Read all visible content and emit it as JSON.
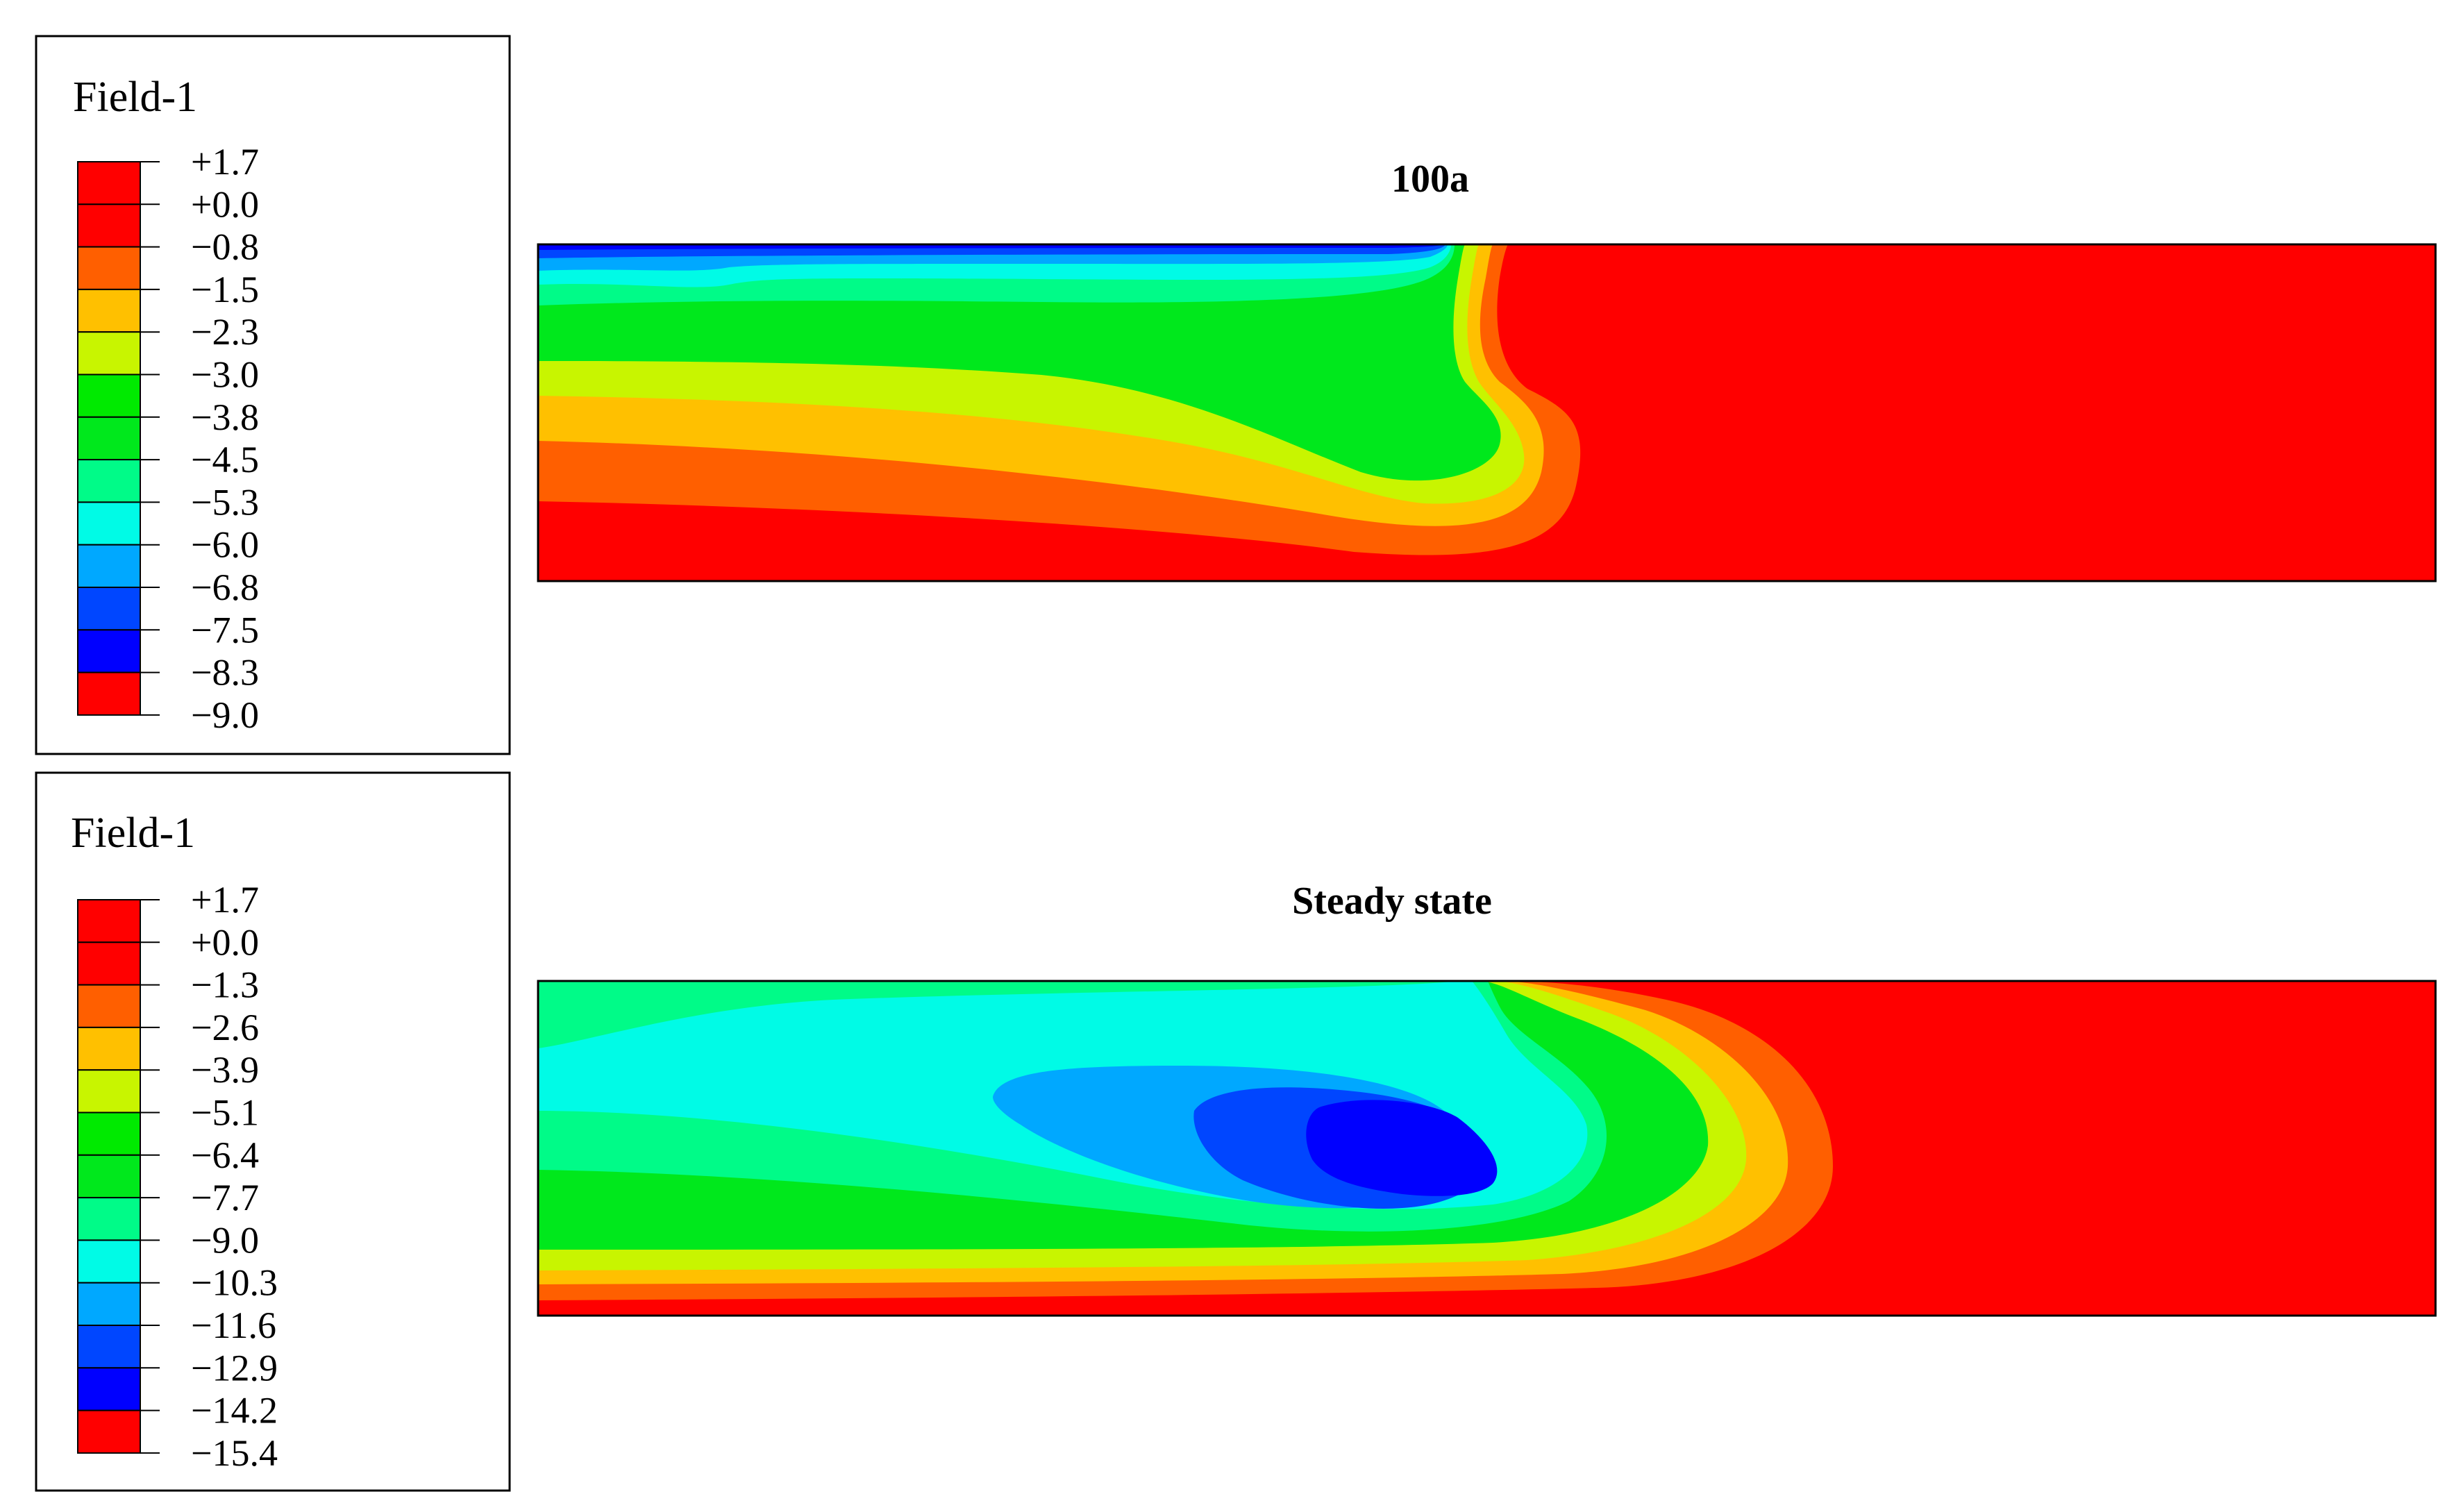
{
  "palette": [
    "#0000ff",
    "#0046ff",
    "#00a8ff",
    "#00fbe6",
    "#00fb88",
    "#00e81c",
    "#00ea00",
    "#c8f500",
    "#ffc000",
    "#ff5f00",
    "#ff0000",
    "#ff0000"
  ],
  "chart_data": [
    {
      "type": "contour",
      "title": "100a",
      "legend": {
        "title": "Field-1",
        "levels": [
          "+1.7",
          "+0.0",
          "−0.8",
          "−1.5",
          "−2.3",
          "−3.0",
          "−3.8",
          "−4.5",
          "−5.3",
          "−6.0",
          "−6.8",
          "−7.5",
          "−8.3",
          "−9.0"
        ]
      },
      "range": [
        -9.0,
        1.7
      ]
    },
    {
      "type": "contour",
      "title": "Steady state",
      "legend": {
        "title": "Field-1",
        "levels": [
          "+1.7",
          "+0.0",
          "−1.3",
          "−2.6",
          "−3.9",
          "−5.1",
          "−6.4",
          "−7.7",
          "−9.0",
          "−10.3",
          "−11.6",
          "−12.9",
          "−14.2",
          "−15.4"
        ]
      },
      "range": [
        -15.4,
        1.7
      ]
    }
  ]
}
